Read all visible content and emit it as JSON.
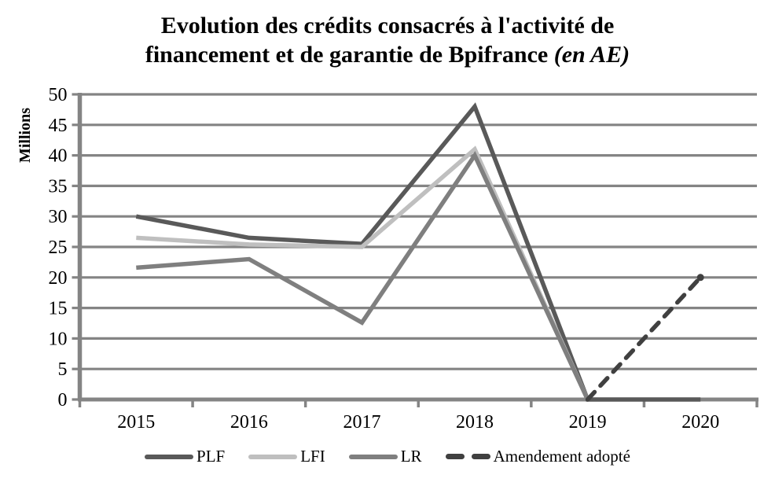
{
  "header": {
    "title_line1": "Evolution des crédits consacrés à l'activité de",
    "title_line2": "financement et de garantie de Bpifrance ",
    "title_line2_italic": "(en AE)"
  },
  "colors": {
    "grid": "#848484",
    "axis": "#848484",
    "text": "#000000",
    "background": "#FFFFFF"
  },
  "chart_data": {
    "type": "line",
    "title": "Evolution des crédits consacrés à l'activité de financement et de garantie de Bpifrance (en AE)",
    "ylabel": "Millions",
    "xlabel": "",
    "categories": [
      "2015",
      "2016",
      "2017",
      "2018",
      "2019",
      "2020"
    ],
    "yticks": [
      0,
      5,
      10,
      15,
      20,
      25,
      30,
      35,
      40,
      45,
      50
    ],
    "ylim": [
      0,
      50
    ],
    "grid": "horizontal",
    "legend_position": "bottom",
    "series": [
      {
        "name": "PLF",
        "color": "#595959",
        "style": "solid",
        "values": [
          30,
          26.5,
          25.5,
          48,
          0,
          0
        ]
      },
      {
        "name": "LFI",
        "color": "#BFBFBF",
        "style": "solid",
        "values": [
          26.5,
          25.4,
          25,
          41,
          0,
          null
        ]
      },
      {
        "name": "LR",
        "color": "#7F7F7F",
        "style": "solid",
        "values": [
          21.6,
          23,
          12.6,
          40,
          0,
          null
        ]
      },
      {
        "name": "Amendement adopté",
        "color": "#404040",
        "style": "dashed",
        "values": [
          null,
          null,
          null,
          null,
          0,
          20
        ]
      }
    ]
  }
}
